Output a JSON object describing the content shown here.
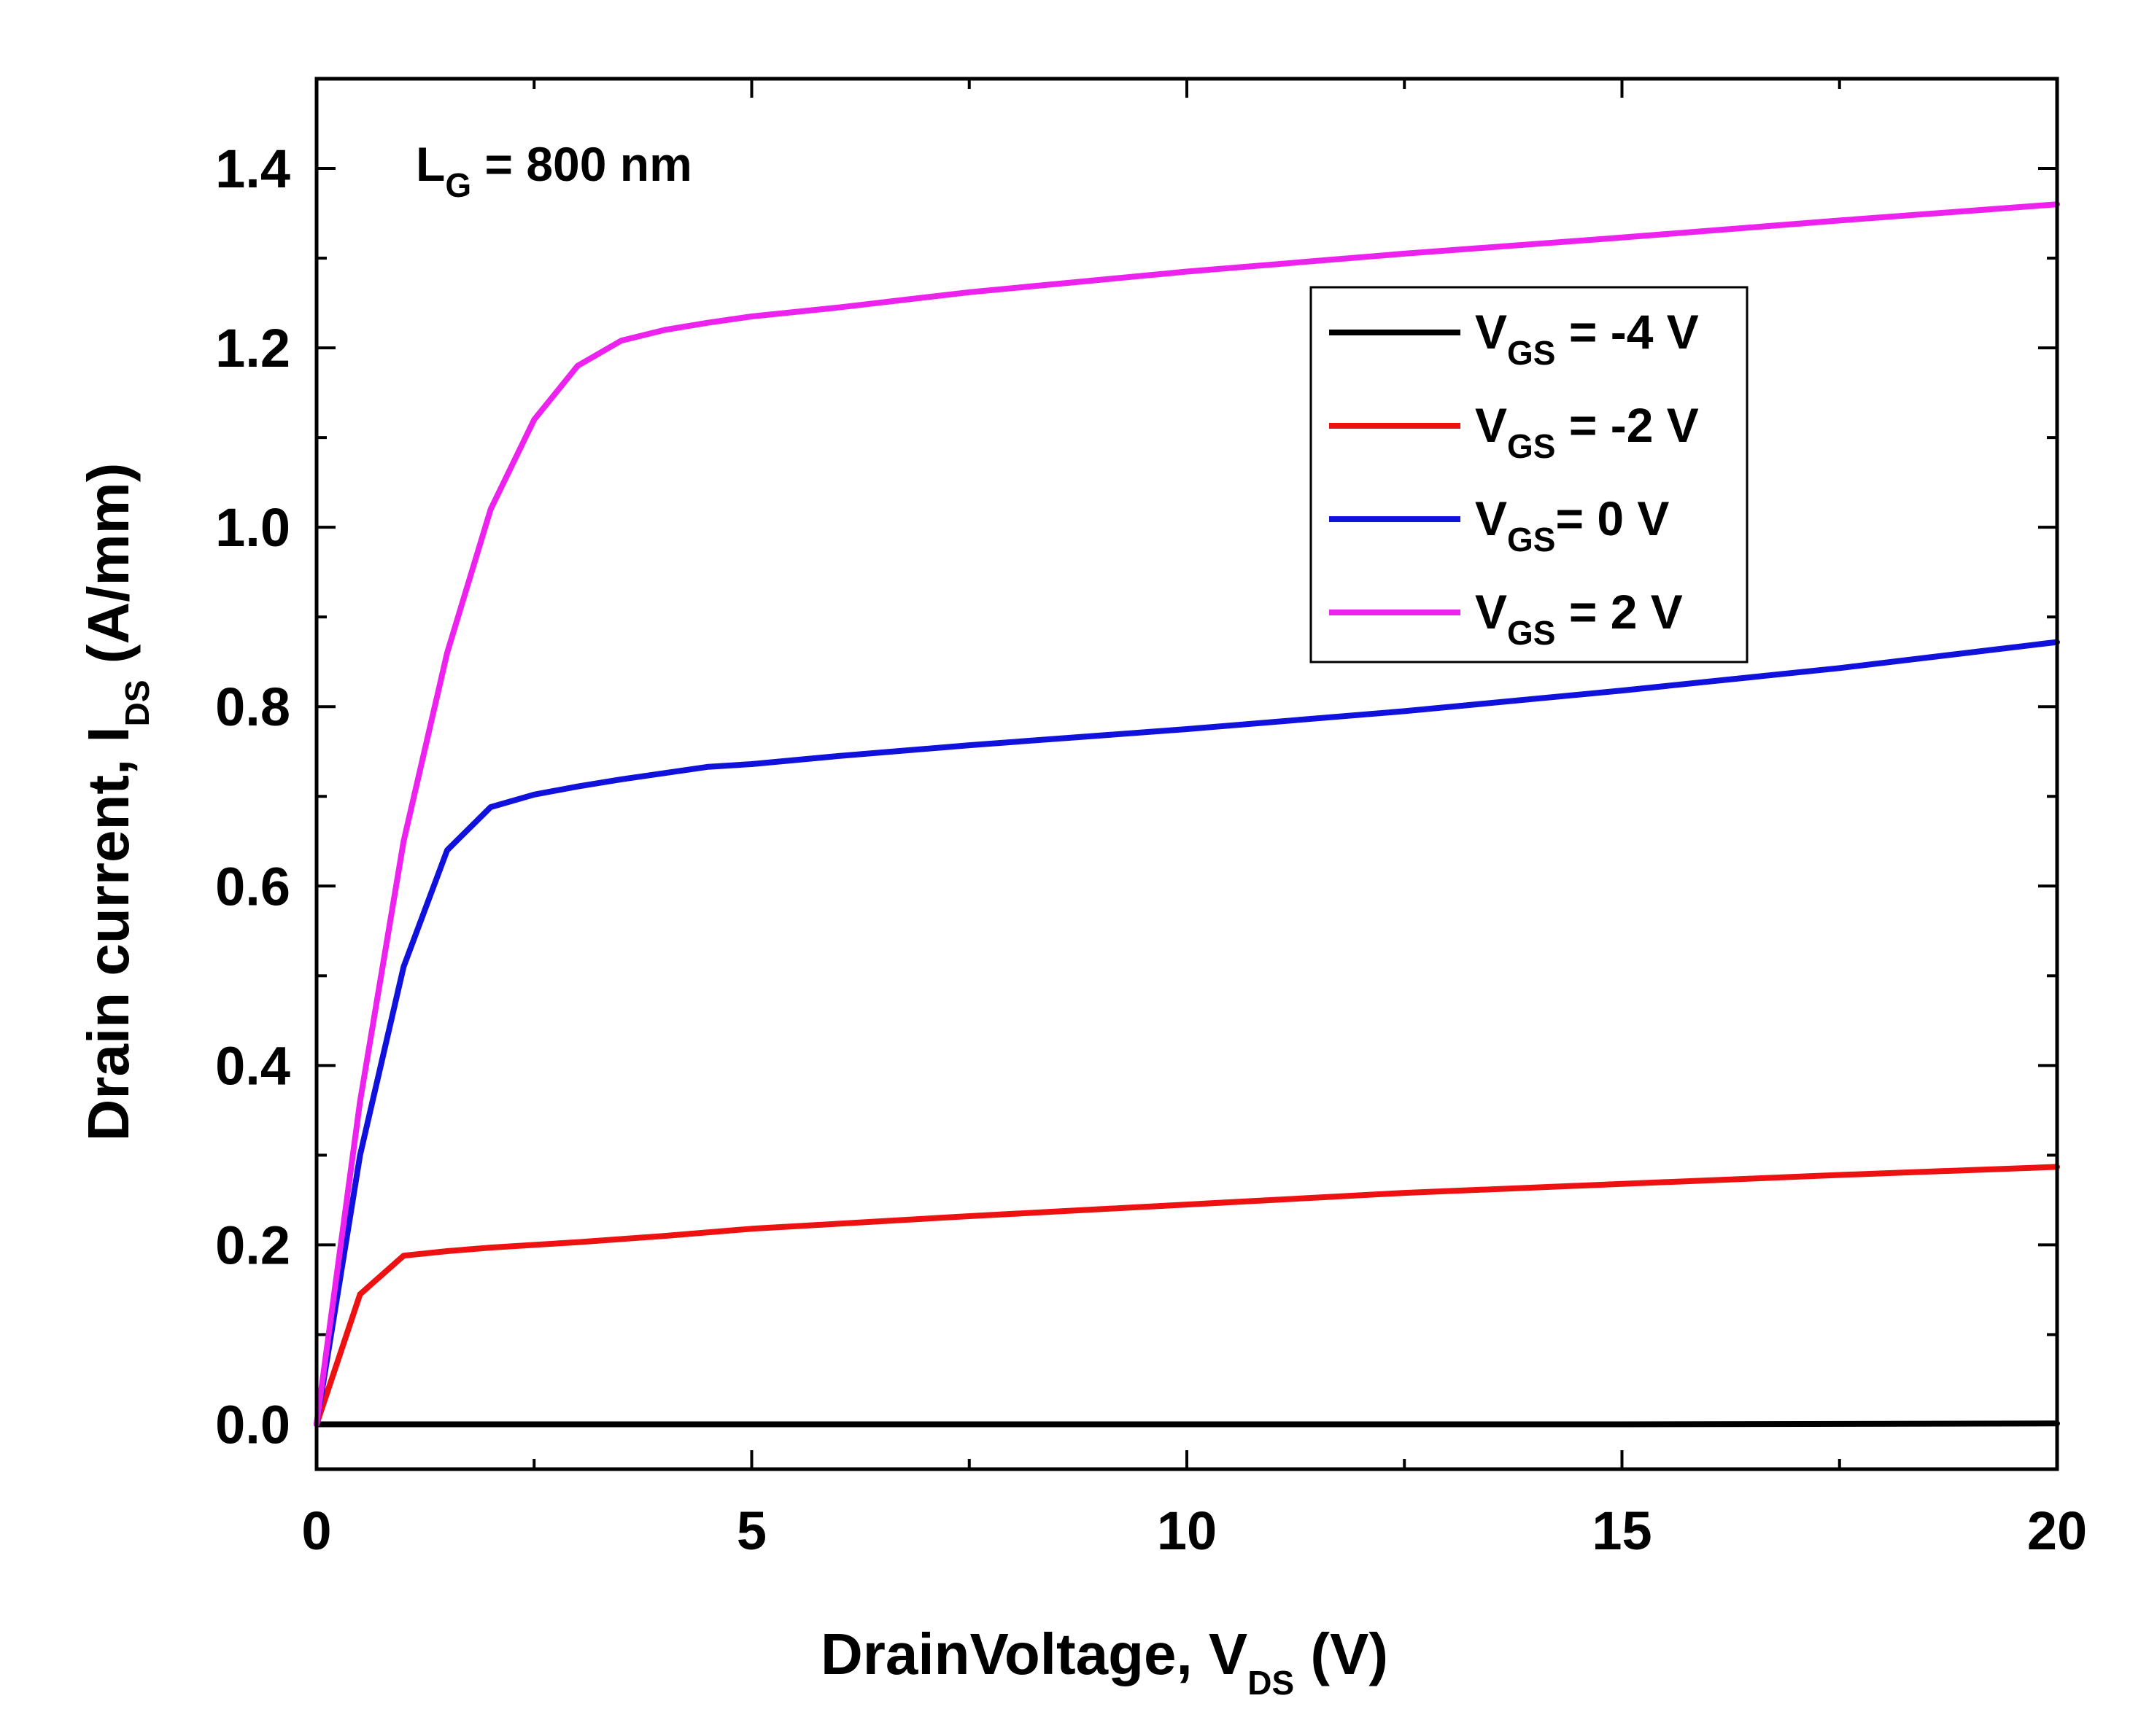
{
  "chart_data": {
    "type": "line",
    "title": "",
    "annotation": {
      "main": "L",
      "sub": "G",
      "rest": " = 800 nm"
    },
    "xlabel": {
      "main": "DrainVoltage, V",
      "sub": "DS",
      "rest": " (V)"
    },
    "ylabel": {
      "main": "Drain current, I",
      "sub": "DS",
      "rest": " (A/mm)"
    },
    "xlim": [
      0,
      20
    ],
    "ylim": [
      -0.05,
      1.5
    ],
    "xticks": [
      0,
      5,
      10,
      15,
      20
    ],
    "xtick_labels": [
      "0",
      "5",
      "10",
      "15",
      "20"
    ],
    "yticks": [
      0.0,
      0.2,
      0.4,
      0.6,
      0.8,
      1.0,
      1.2,
      1.4
    ],
    "ytick_labels": [
      "0.0",
      "0.2",
      "0.4",
      "0.6",
      "0.8",
      "1.0",
      "1.2",
      "1.4"
    ],
    "x_minor_step": 2.5,
    "y_minor_step": 0.1,
    "grid": false,
    "legend_position": "upper-right",
    "series": [
      {
        "name": "V_GS = -4 V",
        "legend": {
          "main": "V",
          "sub": "GS",
          "rest": " = -4 V"
        },
        "color": "#000000",
        "x": [
          0,
          5,
          10,
          15,
          20
        ],
        "y": [
          0.0,
          0.0,
          0.0,
          0.0,
          0.001
        ]
      },
      {
        "name": "V_GS = -2 V",
        "legend": {
          "main": "V",
          "sub": "GS",
          "rest": " = -2 V"
        },
        "color": "#ee1111",
        "x": [
          0,
          0.5,
          1.0,
          1.5,
          2.0,
          3.0,
          4.0,
          5.0,
          7.5,
          10,
          12.5,
          15,
          17.5,
          20
        ],
        "y": [
          0.0,
          0.145,
          0.188,
          0.193,
          0.197,
          0.203,
          0.21,
          0.218,
          0.232,
          0.245,
          0.258,
          0.268,
          0.278,
          0.287
        ]
      },
      {
        "name": "V_GS = 0 V",
        "legend": {
          "main": "V",
          "sub": "GS",
          "rest": "= 0 V"
        },
        "color": "#1111dd",
        "x": [
          0,
          0.5,
          1.0,
          1.5,
          2.0,
          2.5,
          3.0,
          3.5,
          4.0,
          4.5,
          5.0,
          6.0,
          7.5,
          10,
          12.5,
          15,
          17.5,
          20
        ],
        "y": [
          0.0,
          0.3,
          0.51,
          0.64,
          0.688,
          0.702,
          0.711,
          0.719,
          0.726,
          0.733,
          0.736,
          0.745,
          0.757,
          0.775,
          0.795,
          0.818,
          0.843,
          0.872
        ]
      },
      {
        "name": "V_GS = 2 V",
        "legend": {
          "main": "V",
          "sub": "GS",
          "rest": " = 2 V"
        },
        "color": "#ee22ee",
        "x": [
          0,
          0.5,
          1.0,
          1.5,
          2.0,
          2.5,
          3.0,
          3.5,
          4.0,
          4.5,
          5.0,
          6.0,
          7.5,
          10,
          12.5,
          15,
          17.5,
          20
        ],
        "y": [
          0.0,
          0.36,
          0.65,
          0.86,
          1.02,
          1.12,
          1.18,
          1.208,
          1.22,
          1.228,
          1.235,
          1.245,
          1.262,
          1.285,
          1.305,
          1.323,
          1.342,
          1.36
        ]
      }
    ]
  }
}
